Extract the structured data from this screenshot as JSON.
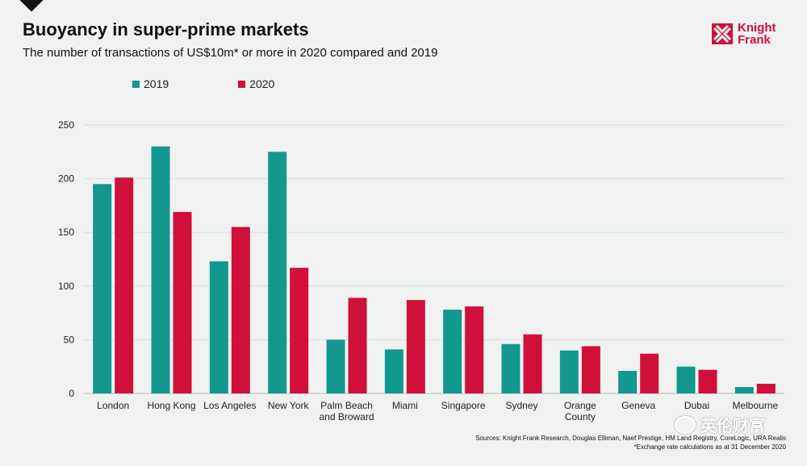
{
  "title": "Buoyancy in super-prime markets",
  "subtitle": "The number of transactions of US$10m* or more in 2020 compared and 2019",
  "logo": {
    "line1": "Knight",
    "line2": "Frank",
    "color": "#d0103a"
  },
  "sources": {
    "line1": "Sources: Knight Frank Research, Douglas Elliman, Naef Prestige, HM Land Registry, CoreLogic, URA Realis",
    "line2": "*Exchange rate calculations as at 31 December 2020"
  },
  "watermark": {
    "text": "英伦财富",
    "icon": "wechat-icon"
  },
  "chart_data": {
    "type": "bar",
    "categories": [
      "London",
      "Hong Kong",
      "Los Angeles",
      "New York",
      "Palm Beach and Broward",
      "Miami",
      "Singapore",
      "Sydney",
      "Orange County",
      "Geneva",
      "Dubai",
      "Melbourne"
    ],
    "category_lines": [
      [
        "London"
      ],
      [
        "Hong Kong"
      ],
      [
        "Los Angeles"
      ],
      [
        "New York"
      ],
      [
        "Palm Beach",
        "and Broward"
      ],
      [
        "Miami"
      ],
      [
        "Singapore"
      ],
      [
        "Sydney"
      ],
      [
        "Orange",
        "County"
      ],
      [
        "Geneva"
      ],
      [
        "Dubai"
      ],
      [
        "Melbourne"
      ]
    ],
    "series": [
      {
        "name": "2019",
        "color": "#13988e",
        "values": [
          195,
          230,
          123,
          225,
          50,
          41,
          78,
          46,
          40,
          21,
          25,
          6
        ]
      },
      {
        "name": "2020",
        "color": "#d0103a",
        "values": [
          201,
          169,
          155,
          117,
          89,
          87,
          81,
          55,
          44,
          37,
          22,
          9
        ]
      }
    ],
    "ylim": [
      0,
      250
    ],
    "yticks": [
      0,
      50,
      100,
      150,
      200,
      250
    ],
    "grid": true,
    "legend": "top-left"
  }
}
